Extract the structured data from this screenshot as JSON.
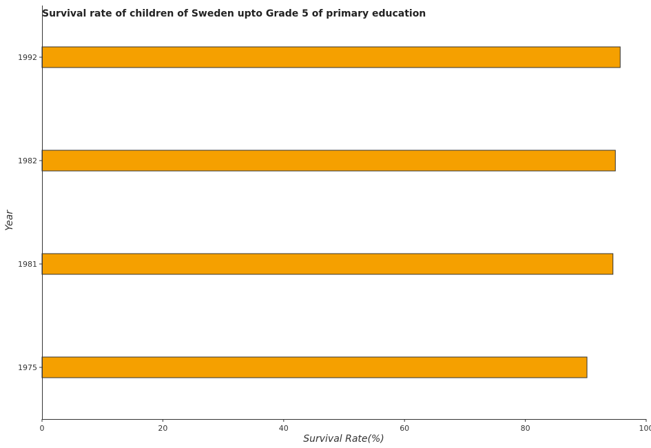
{
  "chart_data": {
    "type": "bar",
    "orientation": "horizontal",
    "title": "Survival rate of children of Sweden upto Grade 5 of primary education",
    "xlabel": "Survival Rate(%)",
    "ylabel": "Year",
    "categories": [
      "1975",
      "1981",
      "1982",
      "1992"
    ],
    "values": [
      90.2,
      94.5,
      94.9,
      95.7
    ],
    "xlim": [
      0,
      100
    ],
    "xticks": [
      0,
      20,
      40,
      60,
      80,
      100
    ],
    "grid": false,
    "legend": "none",
    "bar_color": "#f5a000",
    "bar_edge_color": "#333333"
  }
}
